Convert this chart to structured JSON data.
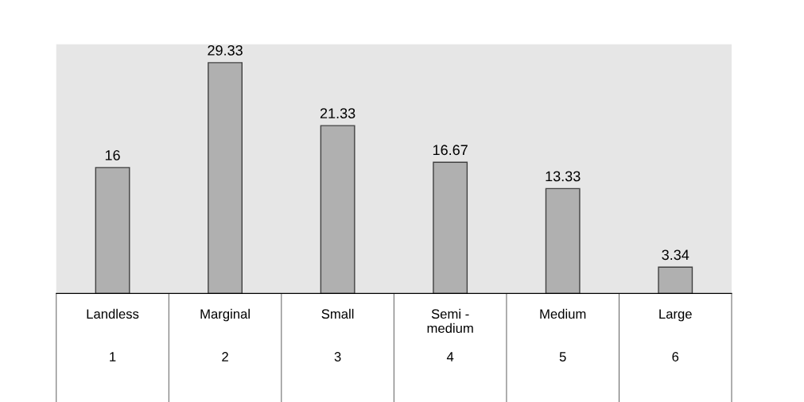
{
  "chart_data": {
    "type": "bar",
    "categories": [
      "Landless\n\n\n1",
      "Marginal\n\n\n2",
      "Small\n\n\n3",
      "Semi -\nmedium\n\n4",
      "Medium\n\n\n5",
      "Large\n\n\n6"
    ],
    "values": [
      16,
      29.33,
      21.33,
      16.67,
      13.33,
      3.34
    ],
    "color": "#b0b0b0",
    "data_labels": true,
    "grid": false,
    "legend": false
  }
}
